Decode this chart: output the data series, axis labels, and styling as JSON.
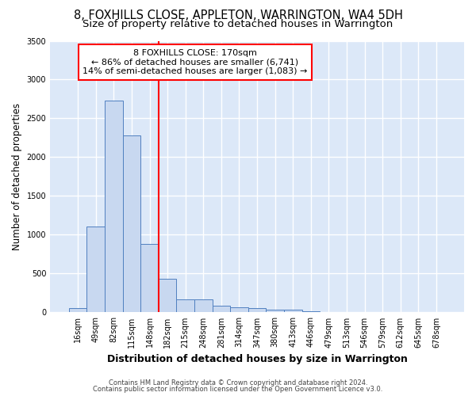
{
  "title1": "8, FOXHILLS CLOSE, APPLETON, WARRINGTON, WA4 5DH",
  "title2": "Size of property relative to detached houses in Warrington",
  "xlabel": "Distribution of detached houses by size in Warrington",
  "ylabel": "Number of detached properties",
  "categories": [
    "16sqm",
    "49sqm",
    "82sqm",
    "115sqm",
    "148sqm",
    "182sqm",
    "215sqm",
    "248sqm",
    "281sqm",
    "314sqm",
    "347sqm",
    "380sqm",
    "413sqm",
    "446sqm",
    "479sqm",
    "513sqm",
    "546sqm",
    "579sqm",
    "612sqm",
    "645sqm",
    "678sqm"
  ],
  "values": [
    55,
    1110,
    2730,
    2280,
    880,
    430,
    170,
    170,
    90,
    65,
    55,
    40,
    30,
    15,
    5,
    0,
    0,
    0,
    0,
    0,
    0
  ],
  "bar_color": "#c8d8f0",
  "bar_edge_color": "#5080c0",
  "annotation_line1": "8 FOXHILLS CLOSE: 170sqm",
  "annotation_line2": "← 86% of detached houses are smaller (6,741)",
  "annotation_line3": "14% of semi-detached houses are larger (1,083) →",
  "footer1": "Contains HM Land Registry data © Crown copyright and database right 2024.",
  "footer2": "Contains public sector information licensed under the Open Government Licence v3.0.",
  "ylim": [
    0,
    3500
  ],
  "yticks": [
    0,
    500,
    1000,
    1500,
    2000,
    2500,
    3000,
    3500
  ],
  "bg_color": "#ffffff",
  "plot_bg_color": "#dce8f8",
  "grid_color": "#ffffff",
  "red_line_index": 5,
  "title1_fontsize": 10.5,
  "title2_fontsize": 9.5,
  "xlabel_fontsize": 9,
  "ylabel_fontsize": 8.5,
  "tick_fontsize": 7,
  "annot_fontsize": 8
}
